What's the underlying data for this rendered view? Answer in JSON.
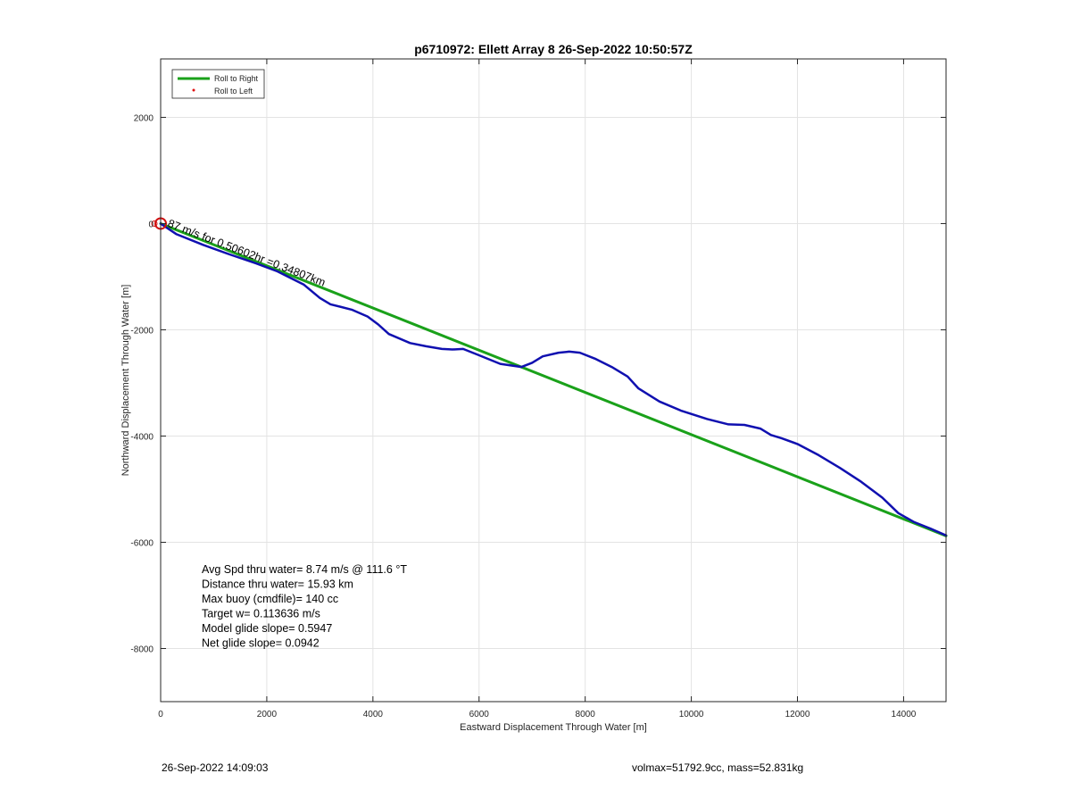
{
  "chart_data": {
    "type": "line",
    "title": "p6710972: Ellett Array 8 26-Sep-2022 10:50:57Z",
    "xlabel": "Eastward Displacement Through Water [m]",
    "ylabel": "Northward Displacement Through Water [m]",
    "xlim": [
      0,
      14800
    ],
    "ylim": [
      -9000,
      3100
    ],
    "xticks": [
      0,
      2000,
      4000,
      6000,
      8000,
      10000,
      12000,
      14000
    ],
    "yticks": [
      -8000,
      -6000,
      -4000,
      -2000,
      0,
      2000
    ],
    "grid": true,
    "legend_position": "top-left",
    "legend": [
      {
        "label": "Roll to Right",
        "color": "#1aa11a",
        "style": "line"
      },
      {
        "label": "Roll to Left",
        "color": "#e01010",
        "style": "dot"
      }
    ],
    "series": [
      {
        "name": "Roll to Right",
        "color": "#1aa11a",
        "x": [
          0,
          14800
        ],
        "y": [
          0,
          -5880
        ]
      },
      {
        "color": "#1010b0",
        "x": [
          0,
          300,
          800,
          1300,
          1800,
          2200,
          2700,
          3000,
          3200,
          3600,
          3900,
          4100,
          4300,
          4700,
          5000,
          5300,
          5500,
          5700,
          6000,
          6400,
          6800,
          7000,
          7200,
          7500,
          7700,
          7900,
          8200,
          8500,
          8800,
          9000,
          9400,
          9800,
          10300,
          10700,
          11000,
          11300,
          11500,
          11700,
          12000,
          12400,
          12800,
          13200,
          13600,
          13900,
          14200,
          14500,
          14800
        ],
        "y": [
          0,
          -200,
          -400,
          -580,
          -750,
          -900,
          -1150,
          -1400,
          -1520,
          -1620,
          -1750,
          -1900,
          -2080,
          -2250,
          -2310,
          -2360,
          -2370,
          -2360,
          -2480,
          -2640,
          -2700,
          -2620,
          -2500,
          -2430,
          -2410,
          -2430,
          -2550,
          -2700,
          -2880,
          -3100,
          -3350,
          -3520,
          -3680,
          -3780,
          -3790,
          -3860,
          -3980,
          -4040,
          -4150,
          -4360,
          -4600,
          -4860,
          -5160,
          -5450,
          -5620,
          -5740,
          -5870
        ]
      }
    ],
    "start_marker": {
      "x": 0,
      "y": 0,
      "color": "#d01010"
    },
    "annotation": {
      "text": "87 m/s for 0.50602hr =0.34807km",
      "x": 120,
      "y": -50,
      "angle": 21
    },
    "stats": [
      "Avg Spd thru water=  8.74 m/s @ 111.6 °T",
      "Distance thru water= 15.93 km",
      "Max buoy (cmdfile)= 140 cc",
      "Target w= 0.113636 m/s",
      "Model glide slope= 0.5947",
      "Net glide slope= 0.0942"
    ]
  },
  "footer": {
    "left": "26-Sep-2022 14:09:03",
    "right": "volmax=51792.9cc, mass=52.831kg"
  }
}
